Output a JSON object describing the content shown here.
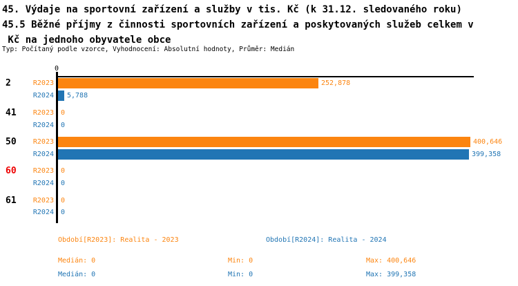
{
  "title": {
    "line1": "45. Výdaje na sportovní zařízení a služby v tis. Kč (k 31.12. sledovaného roku)",
    "line2": "45.5 Běžné příjmy z činnosti sportovních zařízení a poskytovaných služeb celkem v",
    "line3": " Kč na jednoho obyvatele obce",
    "meta": "Typ: Počítaný podle vzorce, Vyhodnocení: Absolutní hodnoty, Průměr: Medián"
  },
  "colors": {
    "r2023": "#FC8510",
    "r2024": "#2175B4",
    "highlight_category": "#EE0000",
    "axis": "#000000",
    "text": "#000000"
  },
  "chart_data": {
    "type": "bar",
    "orientation": "horizontal",
    "axis_tick": "0",
    "xmax": 400646,
    "grid": false,
    "categories": [
      "2",
      "41",
      "50",
      "60",
      "61"
    ],
    "highlighted_category": "60",
    "series": [
      {
        "name": "R2023",
        "color": "#FC8510",
        "values": [
          252878,
          0,
          400646,
          0,
          0
        ],
        "labels": [
          "252,878",
          "0",
          "400,646",
          "0",
          "0"
        ]
      },
      {
        "name": "R2024",
        "color": "#2175B4",
        "values": [
          5788,
          0,
          399358,
          0,
          0
        ],
        "labels": [
          "5,788",
          "0",
          "399,358",
          "0",
          "0"
        ]
      }
    ]
  },
  "legend": [
    {
      "label": "Období[R2023]: Realita - 2023",
      "color": "#FC8510"
    },
    {
      "label": "Období[R2024]: Realita - 2024",
      "color": "#2175B4"
    }
  ],
  "stats": [
    {
      "series": "R2023",
      "median": "Medián: 0",
      "min": "Min: 0",
      "max": "Max: 400,646",
      "color": "#FC8510"
    },
    {
      "series": "R2024",
      "median": "Medián: 0",
      "min": "Min: 0",
      "max": "Max: 399,358",
      "color": "#2175B4"
    }
  ]
}
